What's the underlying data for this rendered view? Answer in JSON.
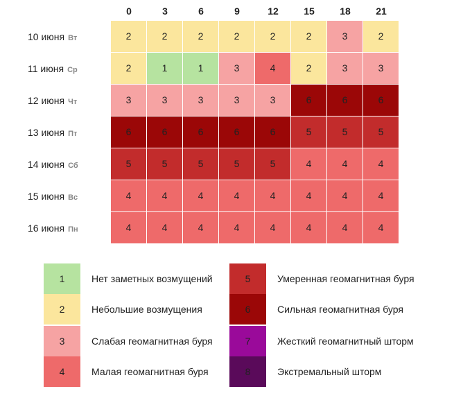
{
  "chart_data": {
    "type": "heatmap",
    "x": [
      "0",
      "3",
      "6",
      "9",
      "12",
      "15",
      "18",
      "21"
    ],
    "rows": [
      {
        "date": "10 июня",
        "dow": "Вт",
        "values": [
          2,
          2,
          2,
          2,
          2,
          2,
          3,
          2
        ]
      },
      {
        "date": "11 июня",
        "dow": "Ср",
        "values": [
          2,
          1,
          1,
          3,
          4,
          2,
          3,
          3
        ]
      },
      {
        "date": "12 июня",
        "dow": "Чт",
        "values": [
          3,
          3,
          3,
          3,
          3,
          6,
          6,
          6
        ]
      },
      {
        "date": "13 июня",
        "dow": "Пт",
        "values": [
          6,
          6,
          6,
          6,
          6,
          5,
          5,
          5
        ]
      },
      {
        "date": "14 июня",
        "dow": "Сб",
        "values": [
          5,
          5,
          5,
          5,
          5,
          4,
          4,
          4
        ]
      },
      {
        "date": "15 июня",
        "dow": "Вс",
        "values": [
          4,
          4,
          4,
          4,
          4,
          4,
          4,
          4
        ]
      },
      {
        "date": "16 июня",
        "dow": "Пн",
        "values": [
          4,
          4,
          4,
          4,
          4,
          4,
          4,
          4
        ]
      }
    ]
  },
  "level_colors": {
    "1": "#b6e3a0",
    "2": "#fbe69d",
    "3": "#f6a3a3",
    "4": "#ee6a6a",
    "5": "#c22c2c",
    "6": "#9b0707",
    "7": "#9a0a9a",
    "8": "#5a0a5a"
  },
  "legend": {
    "left": [
      {
        "level": "1",
        "label": "Нет заметных возмущений"
      },
      {
        "level": "2",
        "label": "Небольшие возмущения"
      },
      {
        "level": "3",
        "label": "Слабая геомагнитная буря"
      },
      {
        "level": "4",
        "label": "Малая геомагнитная буря"
      }
    ],
    "right": [
      {
        "level": "5",
        "label": "Умеренная геомагнитная буря"
      },
      {
        "level": "6",
        "label": "Сильная геомагнитная буря"
      },
      {
        "level": "7",
        "label": "Жесткий геомагнитный шторм"
      },
      {
        "level": "8",
        "label": "Экстремальный шторм"
      }
    ]
  }
}
